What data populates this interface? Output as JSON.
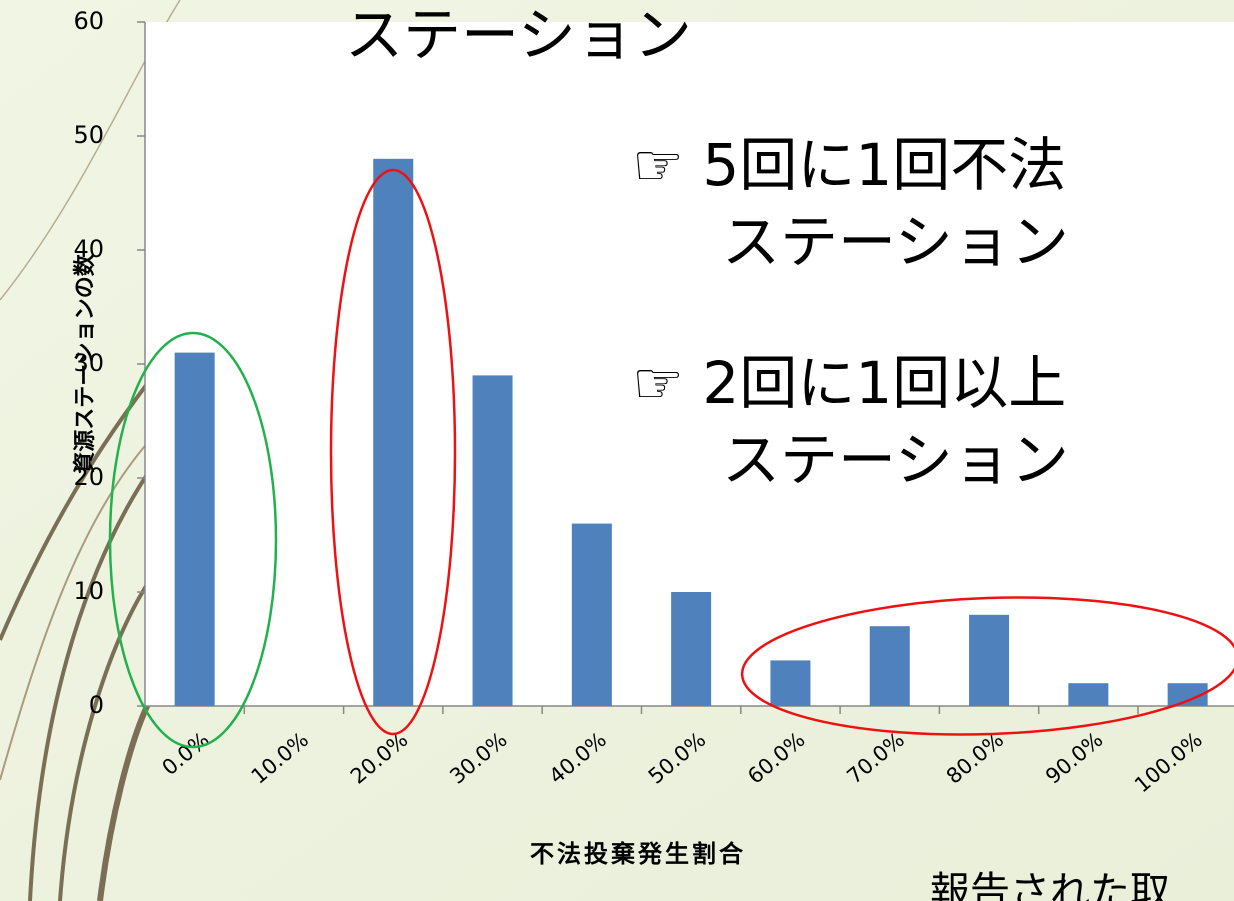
{
  "chart_data": {
    "type": "bar",
    "categories": [
      "0.0%",
      "10.0%",
      "20.0%",
      "30.0%",
      "40.0%",
      "50.0%",
      "60.0%",
      "70.0%",
      "80.0%",
      "90.0%",
      "100.0%"
    ],
    "values": [
      31,
      0,
      48,
      29,
      16,
      10,
      4,
      7,
      8,
      2,
      2
    ],
    "color": "#4f81bd",
    "ylim": [
      0,
      60
    ],
    "yticks": [
      0,
      10,
      20,
      30,
      40,
      50,
      60
    ],
    "x_label": "不法投棄発生割合",
    "y_label": "資源ステーションの数"
  },
  "slide_text": {
    "lines": [
      "ステーション",
      "☞ 5回に1回不法",
      "ステーション",
      "☞ 2回に1回以上",
      "ステーション",
      "報告された取"
    ]
  }
}
